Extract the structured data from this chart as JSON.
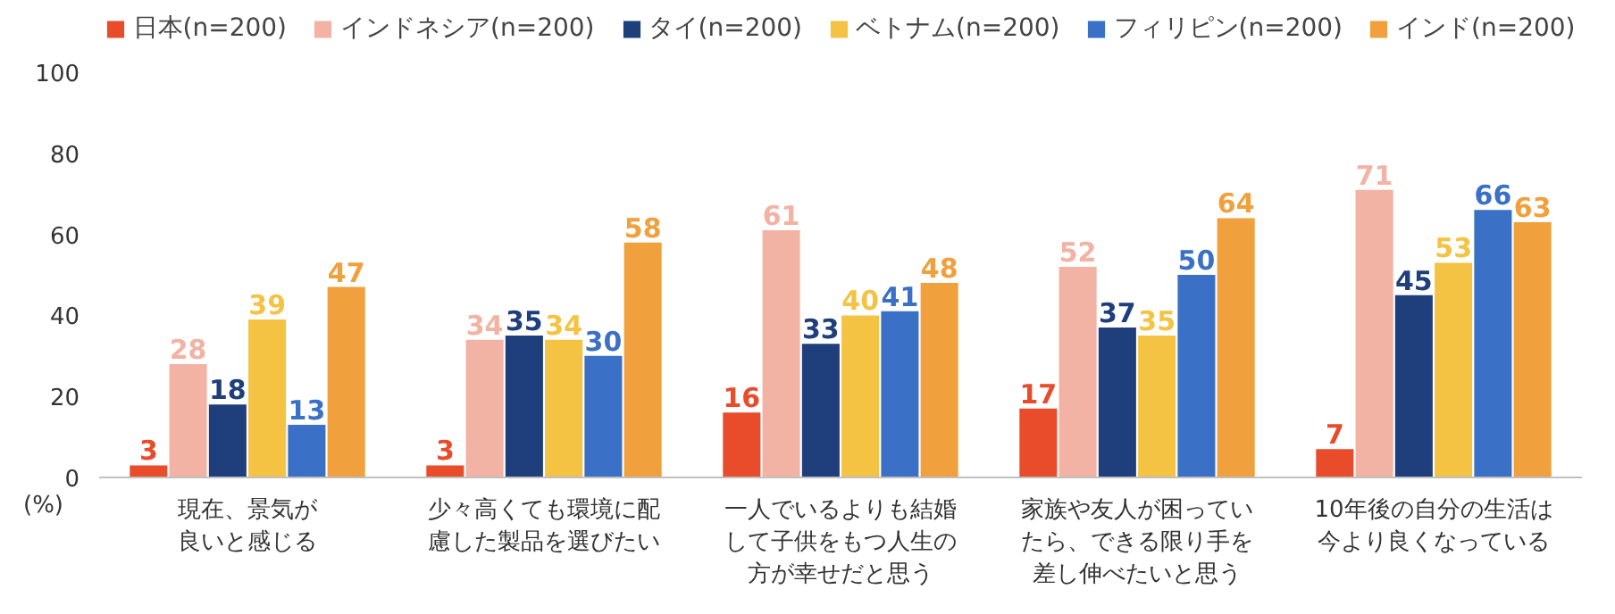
{
  "chart_data": {
    "type": "bar",
    "ylabel": "(%)",
    "categories": [
      "現在、景気が良いと感じる",
      "少々高くても環境に配慮した製品を選びたい",
      "一人でいるよりも結婚して子供をもつ人生の方が幸せだと思う",
      "家族や友人が困っていたら、できる限り手を差し伸べたいと思う",
      "10年後の自分の生活は今より良くなっている"
    ],
    "series": [
      {
        "name": "日本(n=200)",
        "color": "#e84c2b",
        "values": [
          3,
          3,
          16,
          17,
          7
        ]
      },
      {
        "name": "インドネシア(n=200)",
        "color": "#f2b3a5",
        "values": [
          28,
          34,
          61,
          52,
          71
        ]
      },
      {
        "name": "タイ(n=200)",
        "color": "#1f3f7c",
        "values": [
          18,
          35,
          33,
          37,
          45
        ]
      },
      {
        "name": "ベトナム(n=200)",
        "color": "#f5c343",
        "values": [
          39,
          34,
          40,
          35,
          53
        ]
      },
      {
        "name": "フィリピン(n=200)",
        "color": "#3a70c5",
        "values": [
          13,
          30,
          41,
          50,
          66
        ]
      },
      {
        "name": "インド(n=200)",
        "color": "#f0a03c",
        "values": [
          47,
          58,
          48,
          64,
          63
        ]
      }
    ],
    "ylim": [
      0,
      100
    ],
    "yticks": [
      0,
      20,
      40,
      60,
      80,
      100
    ],
    "grid": false,
    "legend": "top",
    "data_labels": true
  }
}
